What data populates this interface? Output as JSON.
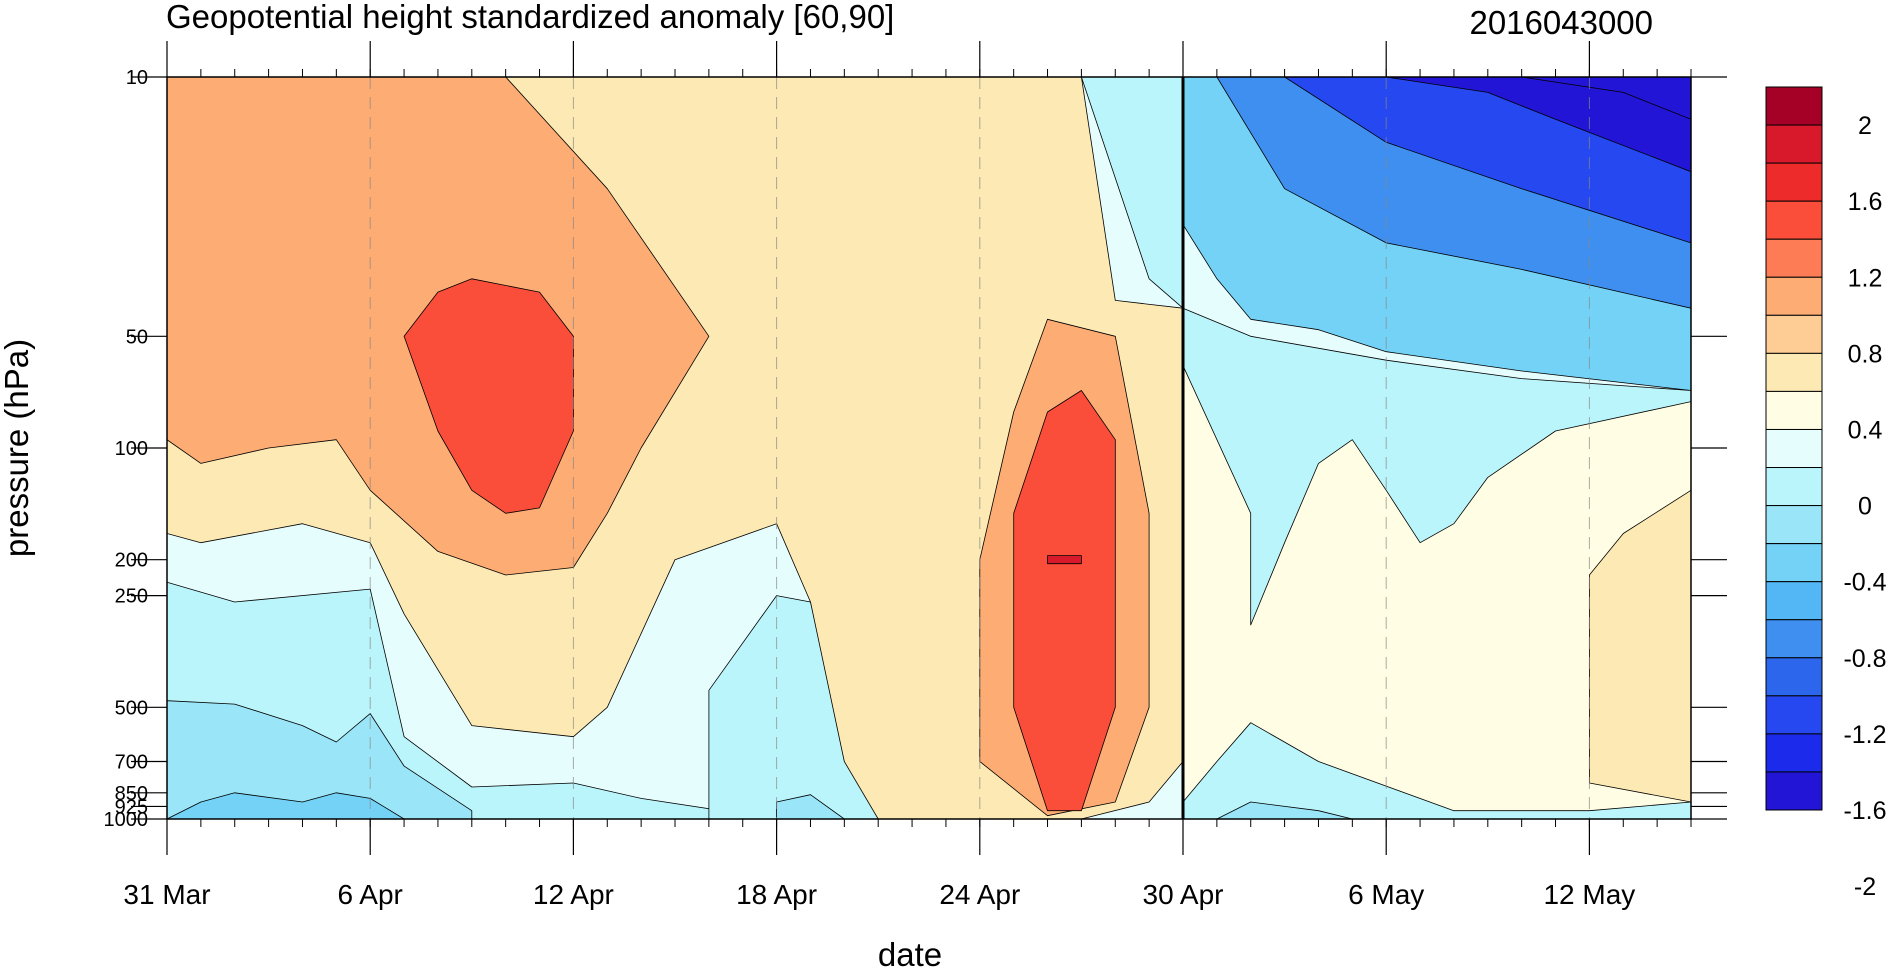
{
  "chart_data": {
    "type": "heatmap",
    "title": "Geopotential height standardized anomaly [60,90]",
    "subtitle": "2016043000",
    "xlabel": "date",
    "ylabel": "pressure (hPa)",
    "x_range": [
      "2016-03-31",
      "2016-05-15"
    ],
    "x_ticks": [
      "31 Mar",
      "6 Apr",
      "12 Apr",
      "18 Apr",
      "24 Apr",
      "30 Apr",
      "6 May",
      "12 May"
    ],
    "y_ticks": [
      "10",
      "50",
      "100",
      "200",
      "250",
      "500",
      "700",
      "850",
      "925",
      "1000"
    ],
    "y_scale": "log",
    "y_reversed": true,
    "y_range": [
      1000,
      10
    ],
    "highlight_date": "30 Apr",
    "colorbar": {
      "labels": [
        "2",
        "1.6",
        "1.2",
        "0.8",
        "0.4",
        "0",
        "-0.4",
        "-0.8",
        "-1.2",
        "-1.6",
        "-2"
      ],
      "levels": [
        2.2,
        2.0,
        1.8,
        1.6,
        1.4,
        1.2,
        1.0,
        0.8,
        0.6,
        0.4,
        0.2,
        0.0,
        -0.2,
        -0.4,
        -0.6,
        -0.8,
        -1.0,
        -1.2,
        -1.4,
        -1.6,
        -1.8,
        -2.0,
        -2.2
      ],
      "colors": [
        "#a50026",
        "#d7192b",
        "#ee2b2b",
        "#fb4e3a",
        "#fd7c55",
        "#fdac74",
        "#fdcd95",
        "#fde9b3",
        "#fffde4",
        "#e6fdfd",
        "#baf5fb",
        "#9ae6f8",
        "#74d2f6",
        "#54b7f5",
        "#3e8ff0",
        "#2b66ec",
        "#2548f0",
        "#1c2aeb",
        "#2215d5"
      ]
    },
    "regions": [
      {
        "level": 0.4,
        "polygon": [
          [
            "2016-03-31",
            10
          ],
          [
            "2016-04-30",
            10
          ],
          [
            "2016-04-30",
            1000
          ],
          [
            "2016-03-31",
            1000
          ]
        ]
      },
      {
        "level": 0.2,
        "polygon": [
          [
            "2016-03-31",
            230
          ],
          [
            "2016-04-02",
            260
          ],
          [
            "2016-04-06",
            240
          ],
          [
            "2016-04-07",
            600
          ],
          [
            "2016-04-09",
            820
          ],
          [
            "2016-04-12",
            800
          ],
          [
            "2016-04-14",
            880
          ],
          [
            "2016-04-18",
            1000
          ],
          [
            "2016-03-31",
            1000
          ]
        ]
      },
      {
        "level": 0.2,
        "polygon": [
          [
            "2016-04-16",
            1000
          ],
          [
            "2016-04-16",
            450
          ],
          [
            "2016-04-18",
            250
          ],
          [
            "2016-04-19",
            260
          ],
          [
            "2016-04-20",
            600
          ],
          [
            "2016-04-21",
            900
          ],
          [
            "2016-04-21",
            1000
          ]
        ]
      },
      {
        "level": 0.2,
        "polygon": [
          [
            "2016-04-27",
            10
          ],
          [
            "2016-04-30",
            10
          ],
          [
            "2016-04-30",
            42
          ],
          [
            "2016-04-29",
            35
          ]
        ]
      },
      {
        "level": 0.0,
        "polygon": [
          [
            "2016-03-31",
            480
          ],
          [
            "2016-04-02",
            490
          ],
          [
            "2016-04-04",
            560
          ],
          [
            "2016-04-05",
            620
          ],
          [
            "2016-04-06",
            520
          ],
          [
            "2016-04-07",
            720
          ],
          [
            "2016-04-09",
            950
          ],
          [
            "2016-04-09",
            1000
          ],
          [
            "2016-03-31",
            1000
          ]
        ]
      },
      {
        "level": 0.0,
        "polygon": [
          [
            "2016-04-18",
            1000
          ],
          [
            "2016-04-18",
            900
          ],
          [
            "2016-04-19",
            860
          ],
          [
            "2016-04-20",
            1000
          ]
        ]
      },
      {
        "level": -0.2,
        "polygon": [
          [
            "2016-03-31",
            1000
          ],
          [
            "2016-04-01",
            900
          ],
          [
            "2016-04-02",
            850
          ],
          [
            "2016-04-04",
            900
          ],
          [
            "2016-04-05",
            850
          ],
          [
            "2016-04-06",
            880
          ],
          [
            "2016-04-07",
            1000
          ]
        ]
      },
      {
        "level": 0.8,
        "polygon": [
          [
            "2016-03-31",
            10
          ],
          [
            "2016-04-27",
            10
          ],
          [
            "2016-04-28",
            40
          ],
          [
            "2016-04-30",
            42
          ],
          [
            "2016-04-30",
            700
          ],
          [
            "2016-04-29",
            900
          ],
          [
            "2016-04-27",
            1000
          ],
          [
            "2016-04-21",
            1000
          ],
          [
            "2016-04-20",
            700
          ],
          [
            "2016-04-19",
            260
          ],
          [
            "2016-04-18",
            160
          ],
          [
            "2016-04-15",
            200
          ],
          [
            "2016-04-13",
            500
          ],
          [
            "2016-04-12",
            600
          ],
          [
            "2016-04-09",
            560
          ],
          [
            "2016-04-07",
            280
          ],
          [
            "2016-04-06",
            180
          ],
          [
            "2016-04-04",
            160
          ],
          [
            "2016-04-01",
            180
          ],
          [
            "2016-03-31",
            170
          ]
        ]
      },
      {
        "level": 1.2,
        "polygon": [
          [
            "2016-03-31",
            10
          ],
          [
            "2016-04-10",
            10
          ],
          [
            "2016-04-13",
            20
          ],
          [
            "2016-04-16",
            50
          ],
          [
            "2016-04-14",
            100
          ],
          [
            "2016-04-13",
            150
          ],
          [
            "2016-04-12",
            210
          ],
          [
            "2016-04-10",
            220
          ],
          [
            "2016-04-08",
            190
          ],
          [
            "2016-04-06",
            130
          ],
          [
            "2016-04-05",
            95
          ],
          [
            "2016-04-03",
            100
          ],
          [
            "2016-04-01",
            110
          ],
          [
            "2016-03-31",
            95
          ]
        ]
      },
      {
        "level": 1.2,
        "polygon": [
          [
            "2016-04-24",
            200
          ],
          [
            "2016-04-25",
            80
          ],
          [
            "2016-04-26",
            45
          ],
          [
            "2016-04-28",
            50
          ],
          [
            "2016-04-29",
            150
          ],
          [
            "2016-04-29",
            500
          ],
          [
            "2016-04-28",
            900
          ],
          [
            "2016-04-26",
            980
          ],
          [
            "2016-04-24",
            700
          ]
        ]
      },
      {
        "level": 1.6,
        "polygon": [
          [
            "2016-04-07",
            50
          ],
          [
            "2016-04-08",
            38
          ],
          [
            "2016-04-09",
            35
          ],
          [
            "2016-04-11",
            38
          ],
          [
            "2016-04-12",
            50
          ],
          [
            "2016-04-12",
            90
          ],
          [
            "2016-04-11",
            145
          ],
          [
            "2016-04-10",
            150
          ],
          [
            "2016-04-09",
            130
          ],
          [
            "2016-04-08",
            90
          ]
        ]
      },
      {
        "level": 1.6,
        "polygon": [
          [
            "2016-04-25",
            150
          ],
          [
            "2016-04-26",
            80
          ],
          [
            "2016-04-27",
            70
          ],
          [
            "2016-04-28",
            95
          ],
          [
            "2016-04-28",
            200
          ],
          [
            "2016-04-28",
            500
          ],
          [
            "2016-04-27",
            950
          ],
          [
            "2016-04-26",
            950
          ],
          [
            "2016-04-25",
            500
          ]
        ]
      },
      {
        "level": 2.0,
        "polygon": [
          [
            "2016-04-26",
            195
          ],
          [
            "2016-04-27",
            195
          ],
          [
            "2016-04-27",
            205
          ],
          [
            "2016-04-26",
            205
          ]
        ]
      },
      {
        "level": -0.2,
        "polygon": [
          [
            "2016-04-30",
            10
          ],
          [
            "2016-05-15",
            10
          ],
          [
            "2016-05-15",
            70
          ],
          [
            "2016-05-10",
            62
          ],
          [
            "2016-05-06",
            55
          ],
          [
            "2016-05-04",
            48
          ],
          [
            "2016-05-02",
            45
          ],
          [
            "2016-05-01",
            35
          ],
          [
            "2016-04-30",
            25
          ]
        ]
      },
      {
        "level": -0.6,
        "polygon": [
          [
            "2016-05-01",
            10
          ],
          [
            "2016-05-15",
            10
          ],
          [
            "2016-05-15",
            42
          ],
          [
            "2016-05-10",
            33
          ],
          [
            "2016-05-06",
            28
          ],
          [
            "2016-05-03",
            20
          ]
        ]
      },
      {
        "level": -1.0,
        "polygon": [
          [
            "2016-05-03",
            10
          ],
          [
            "2016-05-15",
            10
          ],
          [
            "2016-05-15",
            28
          ],
          [
            "2016-05-10",
            20
          ],
          [
            "2016-05-06",
            15
          ]
        ]
      },
      {
        "level": -1.4,
        "polygon": [
          [
            "2016-05-06",
            10
          ],
          [
            "2016-05-15",
            10
          ],
          [
            "2016-05-15",
            18
          ],
          [
            "2016-05-11",
            13
          ],
          [
            "2016-05-09",
            11
          ]
        ]
      },
      {
        "level": -1.8,
        "polygon": [
          [
            "2016-05-10",
            10
          ],
          [
            "2016-05-15",
            10
          ],
          [
            "2016-05-15",
            13
          ],
          [
            "2016-05-13",
            11
          ]
        ]
      },
      {
        "level": 0.2,
        "polygon": [
          [
            "2016-04-30",
            42
          ],
          [
            "2016-05-02",
            50
          ],
          [
            "2016-05-06",
            58
          ],
          [
            "2016-05-10",
            65
          ],
          [
            "2016-05-15",
            70
          ],
          [
            "2016-05-15",
            1000
          ],
          [
            "2016-04-30",
            1000
          ]
        ]
      },
      {
        "level": 0.6,
        "polygon": [
          [
            "2016-04-30",
            60
          ],
          [
            "2016-05-02",
            150
          ],
          [
            "2016-05-02",
            300
          ],
          [
            "2016-05-03",
            180
          ],
          [
            "2016-05-04",
            110
          ],
          [
            "2016-05-05",
            95
          ],
          [
            "2016-05-06",
            130
          ],
          [
            "2016-05-07",
            180
          ],
          [
            "2016-05-08",
            160
          ],
          [
            "2016-05-09",
            120
          ],
          [
            "2016-05-11",
            90
          ],
          [
            "2016-05-15",
            75
          ],
          [
            "2016-05-15",
            900
          ],
          [
            "2016-05-12",
            950
          ],
          [
            "2016-05-08",
            950
          ],
          [
            "2016-05-04",
            700
          ],
          [
            "2016-05-02",
            550
          ],
          [
            "2016-05-01",
            700
          ],
          [
            "2016-04-30",
            900
          ]
        ]
      },
      {
        "level": 0.8,
        "polygon": [
          [
            "2016-05-12",
            220
          ],
          [
            "2016-05-13",
            170
          ],
          [
            "2016-05-15",
            130
          ],
          [
            "2016-05-15",
            900
          ],
          [
            "2016-05-12",
            800
          ]
        ]
      },
      {
        "level": 0.0,
        "polygon": [
          [
            "2016-05-01",
            1000
          ],
          [
            "2016-05-02",
            900
          ],
          [
            "2016-05-04",
            950
          ],
          [
            "2016-05-05",
            1000
          ]
        ]
      }
    ]
  }
}
